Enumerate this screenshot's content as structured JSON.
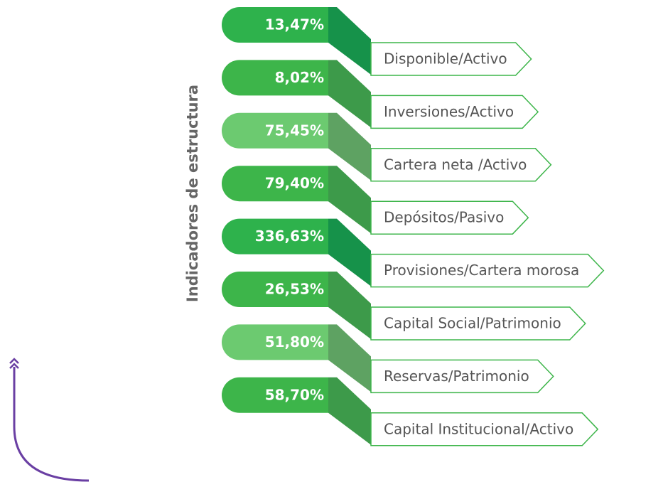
{
  "title": "Indicadores de estructura",
  "items": [
    {
      "value": "13,47%",
      "label": "Disponible/Activo"
    },
    {
      "value": "8,02%",
      "label": "Inversiones/Activo"
    },
    {
      "value": "75,45%",
      "label": "Cartera neta /Activo"
    },
    {
      "value": "79,40%",
      "label": "Depósitos/Pasivo"
    },
    {
      "value": "336,63%",
      "label": "Provisiones/Cartera morosa"
    },
    {
      "value": "26,53%",
      "label": "Capital Social/Patrimonio"
    },
    {
      "value": "51,80%",
      "label": "Reservas/Patrimonio"
    },
    {
      "value": "58,70%",
      "label": "Capital Institucional/Activo"
    }
  ]
}
